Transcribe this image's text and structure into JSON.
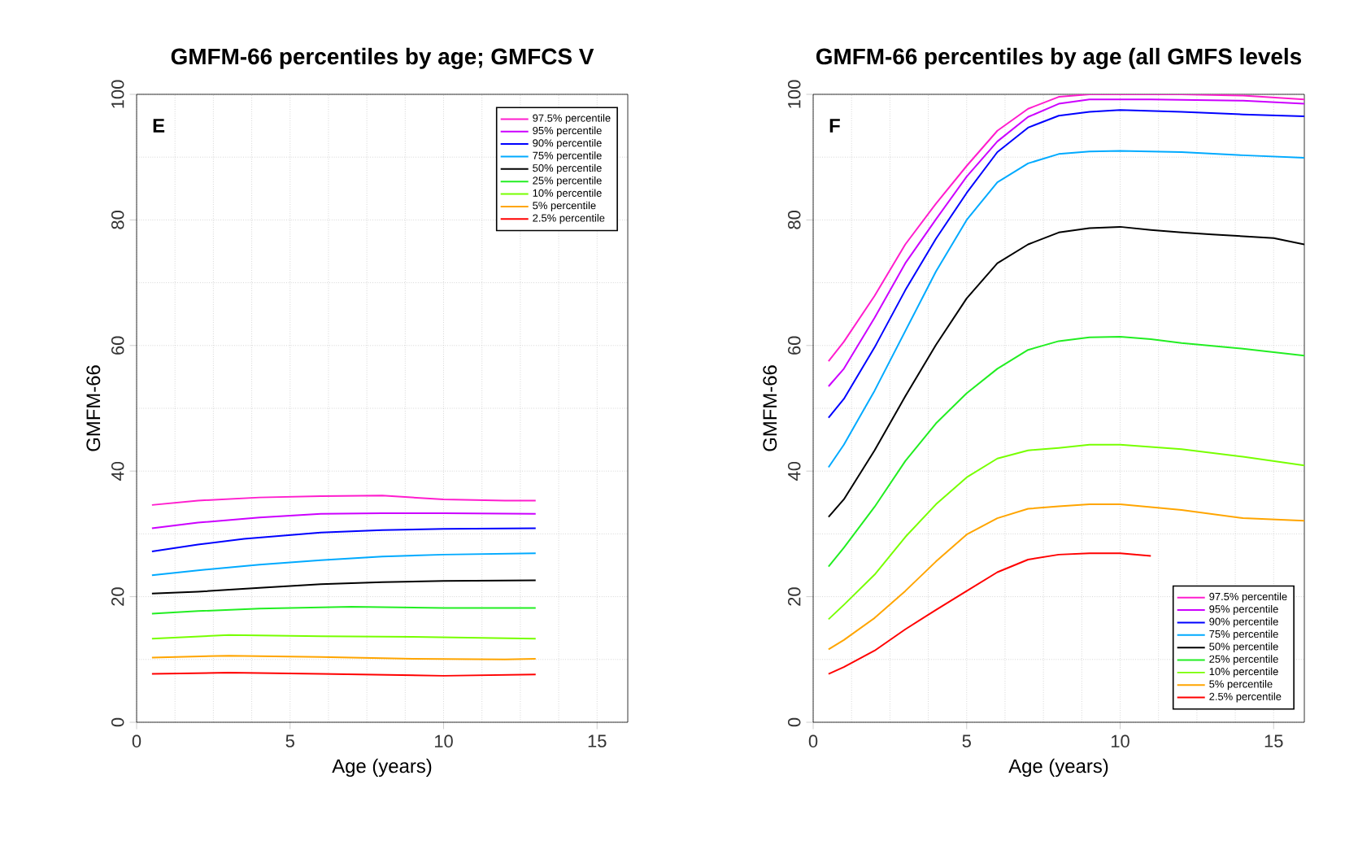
{
  "chart_data": [
    {
      "type": "line",
      "title": "GMFM-66 percentiles by age; GMFCS V",
      "xlabel": "Age (years)",
      "ylabel": "GMFM-66",
      "annotations": [
        "E"
      ],
      "xlim": [
        0,
        16
      ],
      "ylim": [
        0,
        100
      ],
      "xticks": [
        0,
        5,
        10,
        15
      ],
      "yticks": [
        0,
        20,
        40,
        60,
        80,
        100
      ],
      "grid": true,
      "legend": "top right",
      "series": [
        {
          "name": "97.5% percentile",
          "color": "#ff1dce",
          "x": [
            0.5,
            2,
            4,
            6,
            8,
            10,
            12,
            13
          ],
          "values": [
            34.6,
            35.3,
            35.8,
            36.0,
            36.1,
            35.5,
            35.3,
            35.3
          ]
        },
        {
          "name": "95% percentile",
          "color": "#cc00ff",
          "x": [
            0.5,
            2,
            4,
            6,
            8,
            10,
            13
          ],
          "values": [
            30.9,
            31.8,
            32.6,
            33.2,
            33.3,
            33.3,
            33.2
          ]
        },
        {
          "name": "90% percentile",
          "color": "#0000ff",
          "x": [
            0.5,
            2,
            3.5,
            6,
            8,
            10,
            13
          ],
          "values": [
            27.2,
            28.3,
            29.2,
            30.2,
            30.6,
            30.8,
            30.9
          ]
        },
        {
          "name": "75% percentile",
          "color": "#00aaff",
          "x": [
            0.5,
            2,
            4,
            6,
            8,
            10,
            13
          ],
          "values": [
            23.4,
            24.2,
            25.1,
            25.8,
            26.4,
            26.7,
            26.9
          ]
        },
        {
          "name": "50% percentile",
          "color": "#000000",
          "x": [
            0.5,
            2,
            4,
            6,
            8,
            10,
            13
          ],
          "values": [
            20.5,
            20.8,
            21.4,
            22.0,
            22.3,
            22.5,
            22.6
          ]
        },
        {
          "name": "25% percentile",
          "color": "#22ee22",
          "x": [
            0.5,
            2,
            4,
            7,
            10,
            13
          ],
          "values": [
            17.3,
            17.7,
            18.1,
            18.4,
            18.2,
            18.2
          ]
        },
        {
          "name": "10% percentile",
          "color": "#77ff00",
          "x": [
            0.5,
            3,
            6,
            9,
            13
          ],
          "values": [
            13.3,
            13.9,
            13.7,
            13.6,
            13.3
          ]
        },
        {
          "name": "5% percentile",
          "color": "#ffa500",
          "x": [
            0.5,
            3,
            6,
            9,
            12,
            13
          ],
          "values": [
            10.3,
            10.6,
            10.4,
            10.1,
            10.0,
            10.1
          ]
        },
        {
          "name": "2.5% percentile",
          "color": "#ff0000",
          "x": [
            0.5,
            3,
            6,
            10,
            13
          ],
          "values": [
            7.7,
            7.9,
            7.7,
            7.4,
            7.6
          ]
        }
      ]
    },
    {
      "type": "line",
      "title": "GMFM-66 percentiles by age (all GMFS levels",
      "xlabel": "Age (years)",
      "ylabel": "GMFM-66",
      "annotations": [
        "F"
      ],
      "xlim": [
        0,
        16
      ],
      "ylim": [
        0,
        100
      ],
      "xticks": [
        0,
        5,
        10,
        15
      ],
      "yticks": [
        0,
        20,
        40,
        60,
        80,
        100
      ],
      "grid": true,
      "legend": "bottom right",
      "series": [
        {
          "name": "97.5% percentile",
          "color": "#ff1dce",
          "x": [
            0.5,
            1,
            2,
            3,
            4,
            5,
            6,
            7,
            8,
            9,
            12,
            14,
            16
          ],
          "values": [
            57.5,
            60.6,
            67.9,
            76.1,
            82.6,
            88.6,
            94.2,
            97.7,
            99.6,
            100,
            100,
            99.8,
            99.2
          ]
        },
        {
          "name": "95% percentile",
          "color": "#cc00ff",
          "x": [
            0.5,
            1,
            2,
            3,
            4,
            5,
            6,
            7,
            8,
            9,
            11,
            14,
            16
          ],
          "values": [
            53.5,
            56.3,
            64.4,
            73.1,
            80.1,
            86.9,
            92.5,
            96.4,
            98.5,
            99.2,
            99.2,
            99.0,
            98.5
          ]
        },
        {
          "name": "90% percentile",
          "color": "#0000ff",
          "x": [
            0.5,
            1,
            2,
            3,
            4,
            5,
            6,
            7,
            8,
            9,
            10,
            12,
            14,
            16
          ],
          "values": [
            48.5,
            51.5,
            59.7,
            68.8,
            77.0,
            84.3,
            90.8,
            94.7,
            96.6,
            97.2,
            97.5,
            97.2,
            96.8,
            96.5
          ]
        },
        {
          "name": "75% percentile",
          "color": "#00aaff",
          "x": [
            0.5,
            1,
            2,
            3,
            4,
            5,
            6,
            7,
            8,
            9,
            10,
            12,
            14,
            16
          ],
          "values": [
            40.6,
            44.2,
            52.8,
            62.3,
            71.8,
            80.0,
            86.0,
            89.0,
            90.5,
            90.9,
            91.0,
            90.8,
            90.3,
            89.9
          ]
        },
        {
          "name": "50% percentile",
          "color": "#000000",
          "x": [
            0.5,
            1,
            2,
            3,
            4,
            5,
            6,
            7,
            8,
            9,
            10,
            11,
            12,
            13,
            14,
            15,
            16
          ],
          "values": [
            32.7,
            35.5,
            43.3,
            51.9,
            60.1,
            67.5,
            73.1,
            76.1,
            78.0,
            78.7,
            78.9,
            78.4,
            78.0,
            77.7,
            77.4,
            77.1,
            76.1
          ]
        },
        {
          "name": "25% percentile",
          "color": "#22ee22",
          "x": [
            0.5,
            1,
            2,
            3,
            4,
            5,
            6,
            7,
            8,
            9,
            10,
            11,
            12,
            14,
            16
          ],
          "values": [
            24.8,
            27.8,
            34.3,
            41.6,
            47.6,
            52.4,
            56.3,
            59.3,
            60.7,
            61.3,
            61.4,
            61.0,
            60.4,
            59.5,
            58.4
          ]
        },
        {
          "name": "10% percentile",
          "color": "#77ff00",
          "x": [
            0.5,
            1,
            2,
            3,
            4,
            5,
            6,
            7,
            8,
            9,
            10,
            12,
            14,
            16
          ],
          "values": [
            16.4,
            18.7,
            23.5,
            29.5,
            34.7,
            39.0,
            42.0,
            43.3,
            43.7,
            44.2,
            44.2,
            43.5,
            42.3,
            40.9
          ]
        },
        {
          "name": "5% percentile",
          "color": "#ffa500",
          "x": [
            0.5,
            1,
            2,
            3,
            4,
            5,
            6,
            7,
            8,
            9,
            10,
            12,
            14,
            16
          ],
          "values": [
            11.6,
            13.1,
            16.6,
            20.9,
            25.6,
            29.9,
            32.5,
            34.0,
            34.4,
            34.7,
            34.7,
            33.8,
            32.5,
            32.1
          ]
        },
        {
          "name": "2.5% percentile",
          "color": "#ff0000",
          "x": [
            0.5,
            1,
            2,
            3,
            4,
            5,
            6,
            7,
            8,
            9,
            10,
            11
          ],
          "values": [
            7.7,
            8.8,
            11.4,
            14.8,
            17.9,
            20.9,
            23.9,
            25.9,
            26.7,
            26.9,
            26.9,
            26.5
          ]
        }
      ]
    }
  ]
}
